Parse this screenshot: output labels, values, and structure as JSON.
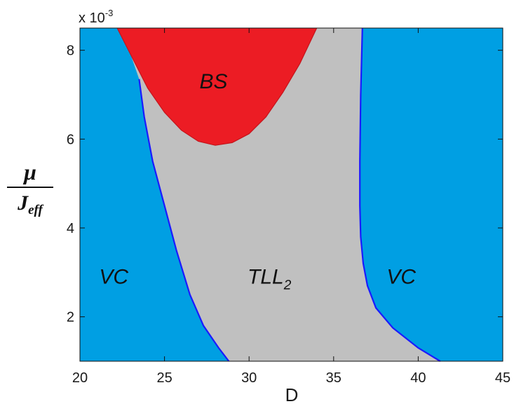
{
  "chart_data": {
    "type": "area",
    "xlabel": "D",
    "ylabel": {
      "numerator": "μ",
      "denominator_base": "J",
      "denominator_sub": "eff"
    },
    "y_multiplier": "x 10",
    "y_multiplier_exp": "-3",
    "xlim": [
      20,
      45
    ],
    "ylim": [
      1.0,
      8.5
    ],
    "x_ticks": [
      20,
      25,
      30,
      35,
      40,
      45
    ],
    "y_ticks": [
      2,
      4,
      6,
      8
    ],
    "grid": false,
    "colors": {
      "VC": "#009fe3",
      "TLL2": "#c0c0c0",
      "BS": "#ec1c24",
      "boundary": "#1a1aff"
    },
    "regions": [
      {
        "name": "BS",
        "label": "BS",
        "label_at": [
          27.9,
          7.3
        ],
        "boundary": [
          [
            22.2,
            8.5
          ],
          [
            23.0,
            7.9
          ],
          [
            24.0,
            7.15
          ],
          [
            25.0,
            6.6
          ],
          [
            26.0,
            6.2
          ],
          [
            27.0,
            5.95
          ],
          [
            28.0,
            5.86
          ],
          [
            29.0,
            5.92
          ],
          [
            30.0,
            6.12
          ],
          [
            31.0,
            6.5
          ],
          [
            32.0,
            7.05
          ],
          [
            33.0,
            7.7
          ],
          [
            34.0,
            8.5
          ]
        ]
      },
      {
        "name": "VC-left",
        "label": "VC",
        "label_at": [
          22.0,
          2.9
        ],
        "boundary": [
          [
            23.5,
            7.35
          ],
          [
            23.8,
            6.5
          ],
          [
            24.3,
            5.5
          ],
          [
            25.0,
            4.5
          ],
          [
            25.7,
            3.5
          ],
          [
            26.5,
            2.5
          ],
          [
            27.3,
            1.8
          ],
          [
            28.2,
            1.3
          ],
          [
            28.8,
            1.0
          ]
        ]
      },
      {
        "name": "TLL2",
        "label": "TLL",
        "label_sub": "2",
        "label_at": [
          31.2,
          2.9
        ],
        "boundary": []
      },
      {
        "name": "VC-right",
        "label": "VC",
        "label_at": [
          39.0,
          2.9
        ],
        "boundary": [
          [
            36.7,
            8.5
          ],
          [
            36.6,
            7.0
          ],
          [
            36.55,
            5.5
          ],
          [
            36.55,
            4.5
          ],
          [
            36.6,
            3.8
          ],
          [
            36.75,
            3.2
          ],
          [
            37.0,
            2.7
          ],
          [
            37.5,
            2.2
          ],
          [
            38.5,
            1.75
          ],
          [
            40.0,
            1.3
          ],
          [
            41.3,
            1.0
          ]
        ]
      }
    ]
  }
}
